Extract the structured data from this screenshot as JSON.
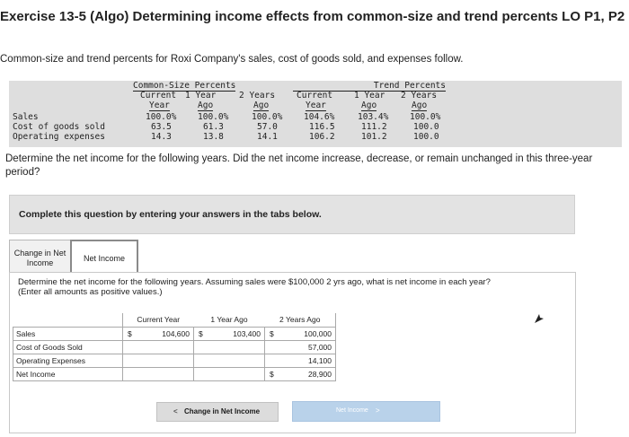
{
  "title": "Exercise 13-5 (Algo) Determining income effects from common-size and trend percents LO P1, P2",
  "intro": "Common-size and trend percents for Roxi Company's sales, cost of goods sold, and expenses follow.",
  "percent_table": {
    "common_size_header": "Common-Size Percents",
    "trend_header": "Trend Percents",
    "cs_cols": [
      [
        "Current",
        "Year"
      ],
      [
        "1 Year",
        "Ago"
      ],
      [
        "2 Years",
        "Ago"
      ]
    ],
    "tr_cols": [
      [
        "Current",
        "Year"
      ],
      [
        "1 Year",
        "Ago"
      ],
      [
        "2 Years",
        "Ago"
      ]
    ],
    "rows": [
      {
        "label": "Sales",
        "cs": [
          "100.0%",
          "100.0%",
          "100.0%"
        ],
        "tr": [
          "104.6%",
          "103.4%",
          "100.0%"
        ]
      },
      {
        "label": "Cost of goods sold",
        "cs": [
          "63.5",
          "61.3",
          "57.0"
        ],
        "tr": [
          "116.5",
          "111.2",
          "100.0"
        ]
      },
      {
        "label": "Operating expenses",
        "cs": [
          "14.3",
          "13.8",
          "14.1"
        ],
        "tr": [
          "106.2",
          "101.2",
          "100.0"
        ]
      }
    ]
  },
  "question": "Determine the net income for the following years. Did the net income increase, decrease, or remain unchanged in this three-year period?",
  "instruction": "Complete this question by entering your answers in the tabs below.",
  "tabs": [
    {
      "label_line1": "Change in Net",
      "label_line2": "Income"
    },
    {
      "label_line1": "Net Income"
    }
  ],
  "prompt": {
    "line1": "Determine the net income for the following years. Assuming sales were $100,000 2 yrs ago, what is net income in each year?",
    "line2": "(Enter all amounts as positive values.)"
  },
  "answer_table": {
    "headers": [
      "Current Year",
      "1 Year Ago",
      "2 Years Ago"
    ],
    "rows": [
      {
        "label": "Sales",
        "values": [
          "104,600",
          "103,400",
          "100,000"
        ],
        "dollar": [
          "$",
          "$",
          "$"
        ]
      },
      {
        "label": "Cost of Goods Sold",
        "values": [
          "",
          "",
          "57,000"
        ],
        "dollar": [
          "",
          "",
          ""
        ]
      },
      {
        "label": "Operating Expenses",
        "values": [
          "",
          "",
          "14,100"
        ],
        "dollar": [
          "",
          "",
          ""
        ]
      },
      {
        "label": "Net Income",
        "values": [
          "",
          "",
          "28,900"
        ],
        "dollar": [
          "",
          "",
          "$"
        ]
      }
    ]
  },
  "buttons": {
    "prev": "Change in Net Income",
    "prev_chevron": "<",
    "next": "Net Income",
    "next_chevron": ">"
  }
}
